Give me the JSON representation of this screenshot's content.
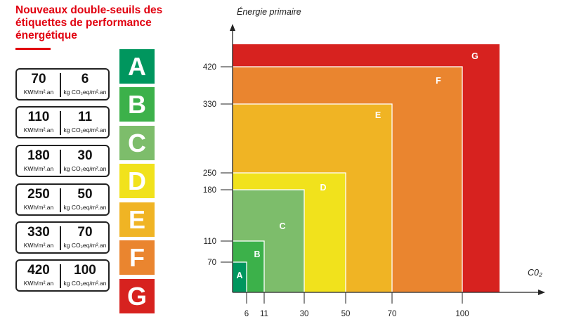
{
  "title_lines": [
    "Nouveaux double-seuils des",
    "étiquettes de performance",
    "énergétique"
  ],
  "thresholds": [
    {
      "energy": "70",
      "energy_unit": "KWh/m².an",
      "co2": "6",
      "co2_unit": "kg CO₂eq/m².an"
    },
    {
      "energy": "110",
      "energy_unit": "KWh/m².an",
      "co2": "11",
      "co2_unit": "kg CO₂eq/m².an"
    },
    {
      "energy": "180",
      "energy_unit": "KWh/m².an",
      "co2": "30",
      "co2_unit": "kg CO₂eq/m².an"
    },
    {
      "energy": "250",
      "energy_unit": "KWh/m².an",
      "co2": "50",
      "co2_unit": "kg CO₂eq/m².an"
    },
    {
      "energy": "330",
      "energy_unit": "KWh/m².an",
      "co2": "70",
      "co2_unit": "kg CO₂eq/m².an"
    },
    {
      "energy": "420",
      "energy_unit": "KWh/m².an",
      "co2": "100",
      "co2_unit": "kg CO₂eq/m².an"
    }
  ],
  "letters": [
    {
      "label": "A",
      "color": "#00965e"
    },
    {
      "label": "B",
      "color": "#3cb14a"
    },
    {
      "label": "C",
      "color": "#7dbd6b"
    },
    {
      "label": "D",
      "color": "#f1e21c"
    },
    {
      "label": "E",
      "color": "#f0b424"
    },
    {
      "label": "F",
      "color": "#ea852f"
    },
    {
      "label": "G",
      "color": "#d7221f"
    }
  ],
  "chart_data": {
    "type": "area",
    "ylabel": "Énergie primaire",
    "xlabel": "C0₂",
    "x_ticks": [
      6,
      11,
      30,
      50,
      70,
      100
    ],
    "y_ticks": [
      70,
      110,
      180,
      250,
      330,
      420
    ],
    "classes": [
      {
        "label": "A",
        "co2_max": 6,
        "energy_max": 70,
        "color": "#00965e"
      },
      {
        "label": "B",
        "co2_max": 11,
        "energy_max": 110,
        "color": "#3cb14a"
      },
      {
        "label": "C",
        "co2_max": 30,
        "energy_max": 180,
        "color": "#7dbd6b"
      },
      {
        "label": "D",
        "co2_max": 50,
        "energy_max": 250,
        "color": "#f1e21c"
      },
      {
        "label": "E",
        "co2_max": 70,
        "energy_max": 330,
        "color": "#f0b424"
      },
      {
        "label": "F",
        "co2_max": 100,
        "energy_max": 420,
        "color": "#ea852f"
      },
      {
        "label": "G",
        "co2_max": null,
        "energy_max": null,
        "color": "#d7221f"
      }
    ]
  }
}
